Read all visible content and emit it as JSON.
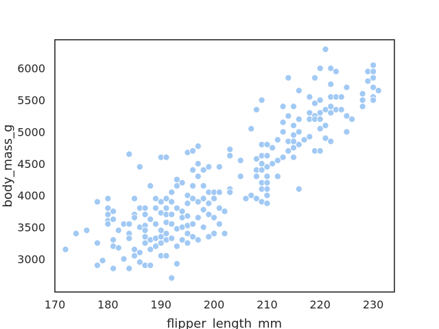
{
  "chart_data": {
    "type": "scatter",
    "title": "",
    "xlabel": "flipper_length_mm",
    "ylabel": "body_mass_g",
    "xlim": [
      170,
      234
    ],
    "ylim": [
      2480,
      6450
    ],
    "xticks": [
      170,
      180,
      190,
      200,
      210,
      220,
      230
    ],
    "yticks": [
      3000,
      3500,
      4000,
      4500,
      5000,
      5500,
      6000
    ],
    "grid": false,
    "legend": "none",
    "color": "#a1c9f4",
    "series": [
      {
        "values": [
          [
            172,
            3150
          ],
          [
            174,
            3400
          ],
          [
            176,
            3450
          ],
          [
            178,
            3900
          ],
          [
            178,
            3250
          ],
          [
            178,
            2900
          ],
          [
            179,
            2975
          ],
          [
            180,
            3950
          ],
          [
            180,
            3800
          ],
          [
            180,
            3700
          ],
          [
            180,
            3600
          ],
          [
            180,
            3550
          ],
          [
            181,
            3750
          ],
          [
            181,
            3625
          ],
          [
            181,
            3300
          ],
          [
            181,
            3200
          ],
          [
            181,
            2850
          ],
          [
            182,
            3175
          ],
          [
            182,
            3450
          ],
          [
            183,
            3550
          ],
          [
            183,
            3000
          ],
          [
            184,
            4650
          ],
          [
            184,
            3550
          ],
          [
            184,
            3400
          ],
          [
            184,
            3325
          ],
          [
            184,
            2850
          ],
          [
            185,
            3950
          ],
          [
            185,
            3700
          ],
          [
            185,
            3650
          ],
          [
            185,
            3150
          ],
          [
            185,
            3050
          ],
          [
            186,
            4450
          ],
          [
            186,
            3800
          ],
          [
            186,
            3500
          ],
          [
            186,
            3100
          ],
          [
            186,
            2950
          ],
          [
            187,
            3800
          ],
          [
            187,
            3700
          ],
          [
            187,
            3525
          ],
          [
            187,
            3450
          ],
          [
            187,
            3350
          ],
          [
            187,
            3250
          ],
          [
            187,
            2900
          ],
          [
            188,
            4150
          ],
          [
            188,
            3625
          ],
          [
            188,
            3300
          ],
          [
            188,
            3150
          ],
          [
            188,
            2900
          ],
          [
            189,
            3950
          ],
          [
            189,
            3800
          ],
          [
            189,
            3550
          ],
          [
            189,
            3325
          ],
          [
            189,
            3200
          ],
          [
            190,
            4600
          ],
          [
            190,
            3900
          ],
          [
            190,
            3725
          ],
          [
            190,
            3450
          ],
          [
            190,
            3350
          ],
          [
            190,
            3250
          ],
          [
            190,
            3050
          ],
          [
            191,
            4600
          ],
          [
            191,
            3950
          ],
          [
            191,
            3800
          ],
          [
            191,
            3700
          ],
          [
            191,
            3575
          ],
          [
            191,
            3400
          ],
          [
            191,
            3300
          ],
          [
            191,
            3050
          ],
          [
            192,
            4050
          ],
          [
            192,
            3900
          ],
          [
            192,
            3700
          ],
          [
            192,
            3550
          ],
          [
            192,
            3325
          ],
          [
            192,
            2700
          ],
          [
            193,
            4250
          ],
          [
            193,
            4150
          ],
          [
            193,
            3800
          ],
          [
            193,
            3475
          ],
          [
            193,
            3200
          ],
          [
            193,
            2925
          ],
          [
            194,
            4200
          ],
          [
            194,
            3750
          ],
          [
            194,
            3650
          ],
          [
            194,
            3500
          ],
          [
            194,
            3300
          ],
          [
            195,
            4675
          ],
          [
            195,
            4000
          ],
          [
            195,
            3875
          ],
          [
            195,
            3675
          ],
          [
            195,
            3525
          ],
          [
            195,
            3400
          ],
          [
            195,
            3250
          ],
          [
            196,
            4700
          ],
          [
            196,
            4400
          ],
          [
            196,
            4150
          ],
          [
            196,
            3950
          ],
          [
            196,
            3550
          ],
          [
            196,
            3350
          ],
          [
            197,
            4775
          ],
          [
            197,
            4500
          ],
          [
            197,
            4300
          ],
          [
            197,
            3900
          ],
          [
            197,
            3650
          ],
          [
            197,
            3300
          ],
          [
            198,
            4400
          ],
          [
            198,
            4150
          ],
          [
            198,
            3950
          ],
          [
            198,
            3775
          ],
          [
            198,
            3500
          ],
          [
            199,
            4450
          ],
          [
            199,
            4050
          ],
          [
            199,
            3875
          ],
          [
            199,
            3700
          ],
          [
            199,
            3350
          ],
          [
            200,
            4050
          ],
          [
            200,
            3950
          ],
          [
            200,
            3650
          ],
          [
            200,
            3400
          ],
          [
            201,
            4450
          ],
          [
            201,
            4050
          ],
          [
            201,
            3800
          ],
          [
            201,
            3550
          ],
          [
            202,
            3750
          ],
          [
            202,
            3400
          ],
          [
            203,
            4725
          ],
          [
            203,
            4625
          ],
          [
            203,
            4100
          ],
          [
            203,
            4050
          ],
          [
            205,
            4550
          ],
          [
            205,
            4300
          ],
          [
            206,
            3950
          ],
          [
            207,
            5050
          ],
          [
            207,
            4000
          ],
          [
            208,
            5350
          ],
          [
            208,
            4575
          ],
          [
            208,
            4400
          ],
          [
            208,
            4300
          ],
          [
            208,
            3950
          ],
          [
            209,
            5500
          ],
          [
            209,
            4800
          ],
          [
            209,
            4625
          ],
          [
            209,
            4500
          ],
          [
            209,
            4400
          ],
          [
            209,
            4200
          ],
          [
            209,
            4100
          ],
          [
            209,
            3900
          ],
          [
            210,
            4800
          ],
          [
            210,
            4625
          ],
          [
            210,
            4450
          ],
          [
            210,
            4300
          ],
          [
            210,
            4200
          ],
          [
            210,
            4100
          ],
          [
            210,
            4000
          ],
          [
            210,
            3875
          ],
          [
            211,
            4750
          ],
          [
            211,
            4500
          ],
          [
            212,
            4875
          ],
          [
            212,
            4550
          ],
          [
            212,
            4300
          ],
          [
            213,
            5400
          ],
          [
            213,
            5150
          ],
          [
            213,
            5000
          ],
          [
            213,
            4600
          ],
          [
            214,
            5850
          ],
          [
            214,
            5250
          ],
          [
            214,
            4850
          ],
          [
            214,
            4700
          ],
          [
            215,
            5400
          ],
          [
            215,
            5100
          ],
          [
            215,
            4950
          ],
          [
            215,
            4850
          ],
          [
            215,
            4750
          ],
          [
            215,
            4600
          ],
          [
            215,
            4600
          ],
          [
            216,
            5650
          ],
          [
            216,
            5200
          ],
          [
            216,
            5000
          ],
          [
            216,
            4800
          ],
          [
            216,
            4100
          ],
          [
            217,
            4875
          ],
          [
            218,
            5550
          ],
          [
            218,
            5300
          ],
          [
            218,
            5200
          ],
          [
            218,
            4925
          ],
          [
            219,
            5850
          ],
          [
            219,
            5450
          ],
          [
            219,
            5250
          ],
          [
            219,
            5200
          ],
          [
            219,
            4700
          ],
          [
            220,
            6000
          ],
          [
            220,
            5500
          ],
          [
            220,
            5300
          ],
          [
            220,
            5200
          ],
          [
            220,
            5050
          ],
          [
            220,
            4700
          ],
          [
            221,
            6300
          ],
          [
            221,
            5350
          ],
          [
            221,
            5100
          ],
          [
            221,
            4900
          ],
          [
            222,
            6000
          ],
          [
            222,
            5750
          ],
          [
            222,
            5550
          ],
          [
            222,
            5400
          ],
          [
            222,
            5300
          ],
          [
            222,
            4850
          ],
          [
            223,
            5950
          ],
          [
            223,
            5550
          ],
          [
            223,
            5350
          ],
          [
            224,
            5550
          ],
          [
            224,
            5350
          ],
          [
            225,
            5700
          ],
          [
            225,
            5250
          ],
          [
            225,
            5000
          ],
          [
            226,
            5200
          ],
          [
            228,
            5600
          ],
          [
            228,
            5500
          ],
          [
            228,
            5400
          ],
          [
            229,
            5950
          ],
          [
            229,
            5800
          ],
          [
            230,
            6050
          ],
          [
            230,
            5950
          ],
          [
            230,
            5850
          ],
          [
            230,
            5700
          ],
          [
            230,
            5550
          ],
          [
            230,
            5500
          ],
          [
            231,
            5650
          ]
        ]
      }
    ]
  }
}
